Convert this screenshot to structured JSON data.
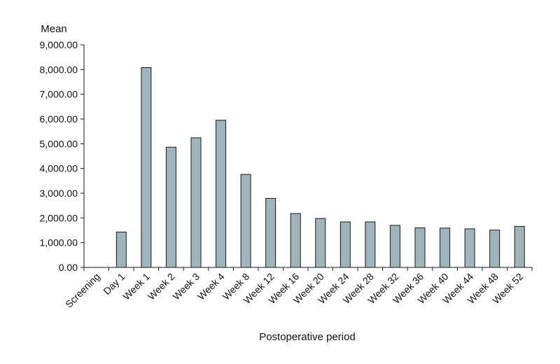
{
  "chart_data": {
    "type": "bar",
    "ylabel": "Mean",
    "xlabel": "Postoperative period",
    "categories": [
      "Screening",
      "Day 1",
      "Week 1",
      "Week 2",
      "Week 3",
      "Week 4",
      "Week 8",
      "Week 12",
      "Week 16",
      "Week 20",
      "Week 24",
      "Week 28",
      "Week 32",
      "Week 36",
      "Week 40",
      "Week 44",
      "Week 48",
      "Week 52"
    ],
    "values": [
      0,
      1430,
      8080,
      4860,
      5240,
      5950,
      3760,
      2790,
      2180,
      1980,
      1840,
      1840,
      1700,
      1600,
      1590,
      1560,
      1510,
      1660
    ],
    "ylim": [
      0,
      9000
    ],
    "yticks": [
      0,
      1000,
      2000,
      3000,
      4000,
      5000,
      6000,
      7000,
      8000,
      9000
    ],
    "ytick_labels": [
      "0.00",
      "1,000.00",
      "2,000.00",
      "3,000.00",
      "4,000.00",
      "5,000.00",
      "6,000.00",
      "7,000.00",
      "8,000.00",
      "9,000.00"
    ],
    "grid": false,
    "bar_color": "#9fb4bb",
    "bar_edge_color": "#1a1a1a"
  }
}
